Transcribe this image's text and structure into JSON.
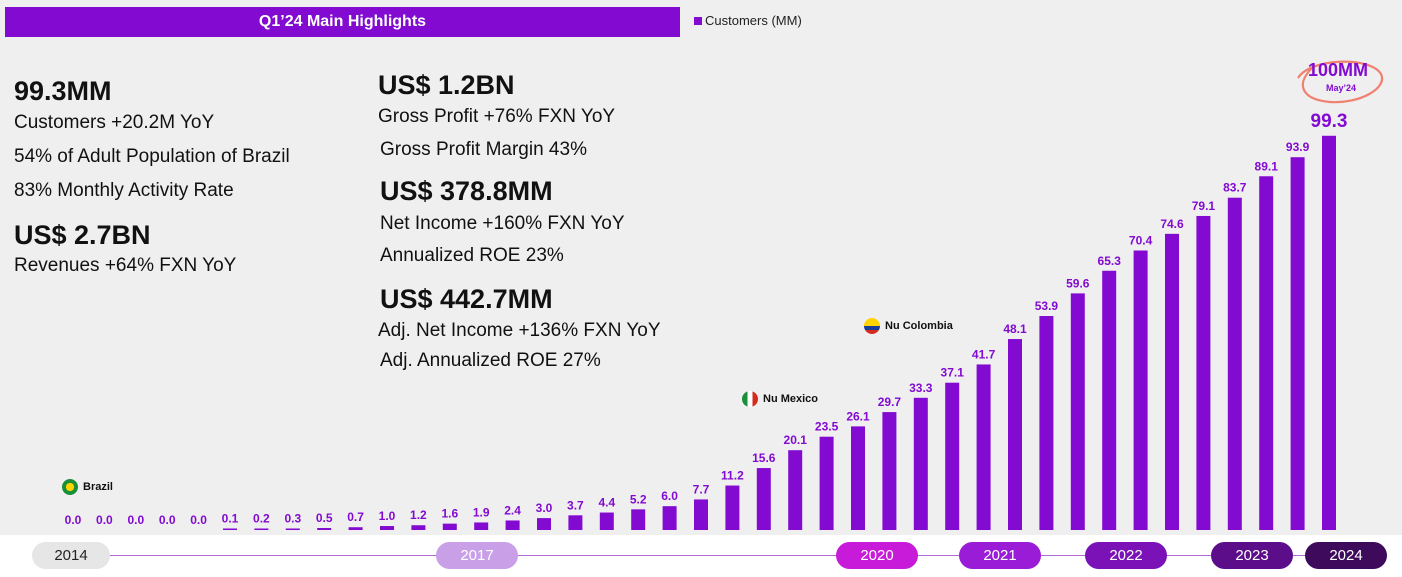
{
  "header": {
    "title": "Q1’24 Main Highlights"
  },
  "legend": {
    "label": "Customers (MM)"
  },
  "highlights": {
    "customers_value": "99.3MM",
    "customers_lines": [
      "Customers +20.2M YoY",
      "54% of Adult Population of Brazil",
      "83% Monthly Activity Rate"
    ],
    "revenue_value": "US$ 2.7BN",
    "revenue_line": "Revenues +64%  FXN YoY",
    "gross_value": "US$ 1.2BN",
    "gross_lines": [
      "Gross Profit +76%  FXN YoY",
      "Gross Profit Margin 43%"
    ],
    "net_value": "US$ 378.8MM",
    "net_lines": [
      "Net Income +160% FXN YoY",
      "Annualized ROE 23%"
    ],
    "adj_value": "US$ 442.7MM",
    "adj_lines": [
      "Adj. Net Income +136% FXN YoY",
      "Adj. Annualized ROE 27%"
    ]
  },
  "markers": {
    "brazil": "Brazil",
    "mexico": "Nu Mexico",
    "colombia": "Nu Colombia",
    "milestone": "100MM",
    "milestone_date": "May’24"
  },
  "colors": {
    "bar": "#820ad1",
    "label": "#820ad1"
  },
  "years": [
    {
      "label": "2014",
      "bg": "#e6e6e6",
      "fg": "#222222"
    },
    {
      "label": "2017",
      "bg": "#c9a0e8",
      "fg": "#ffffff"
    },
    {
      "label": "2020",
      "bg": "#c71bd9",
      "fg": "#ffffff"
    },
    {
      "label": "2021",
      "bg": "#9a1cd6",
      "fg": "#ffffff"
    },
    {
      "label": "2022",
      "bg": "#7a12b8",
      "fg": "#ffffff"
    },
    {
      "label": "2023",
      "bg": "#5b0d8a",
      "fg": "#ffffff"
    },
    {
      "label": "2024",
      "bg": "#3d0a5c",
      "fg": "#ffffff"
    }
  ],
  "chart_data": {
    "type": "bar",
    "title": "Customers (MM)",
    "values": [
      0.0,
      0.0,
      0.0,
      0.0,
      0.0,
      0.1,
      0.2,
      0.3,
      0.5,
      0.7,
      1.0,
      1.2,
      1.6,
      1.9,
      2.4,
      3.0,
      3.7,
      4.4,
      5.2,
      6.0,
      7.7,
      11.2,
      15.6,
      20.1,
      23.5,
      26.1,
      29.7,
      33.3,
      37.1,
      41.7,
      48.1,
      53.9,
      59.6,
      65.3,
      70.4,
      74.6,
      79.1,
      83.7,
      89.1,
      93.9,
      99.3
    ],
    "labels": [
      "0.0",
      "0.0",
      "0.0",
      "0.0",
      "0.0",
      "0.1",
      "0.2",
      "0.3",
      "0.5",
      "0.7",
      "1.0",
      "1.2",
      "1.6",
      "1.9",
      "2.4",
      "3.0",
      "3.7",
      "4.4",
      "5.2",
      "6.0",
      "7.7",
      "11.2",
      "15.6",
      "20.1",
      "23.5",
      "26.1",
      "29.7",
      "33.3",
      "37.1",
      "41.7",
      "48.1",
      "53.9",
      "59.6",
      "65.3",
      "70.4",
      "74.6",
      "79.1",
      "83.7",
      "89.1",
      "93.9",
      "99.3"
    ],
    "ylim": [
      0,
      100
    ]
  }
}
